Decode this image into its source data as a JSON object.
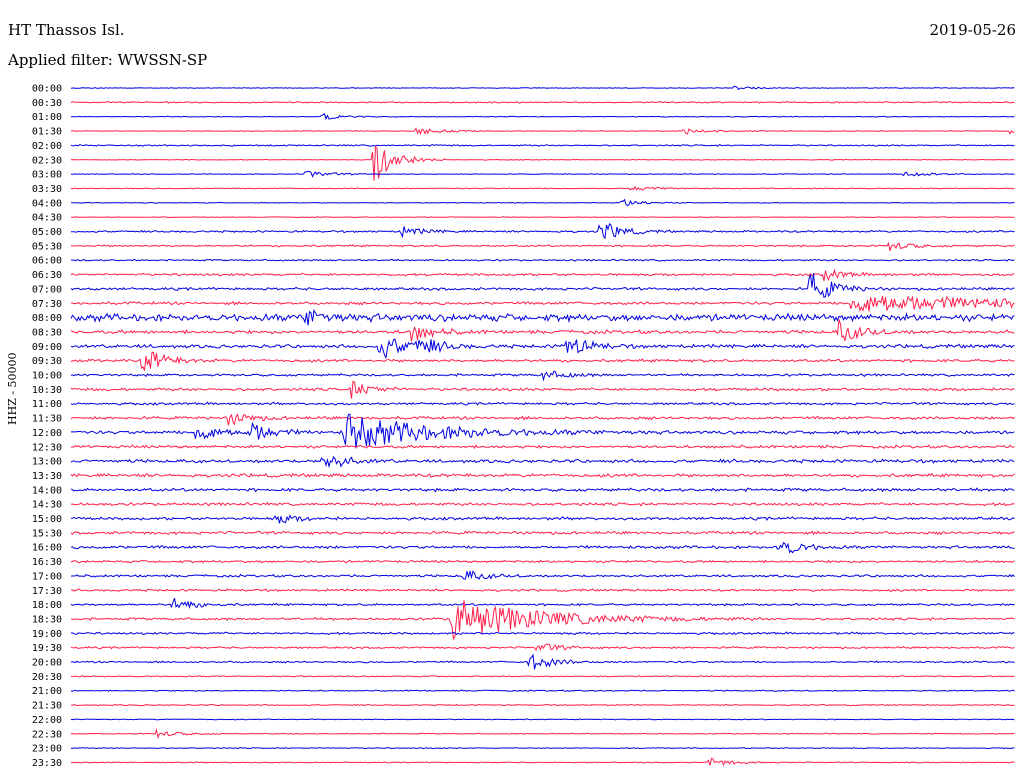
{
  "header": {
    "station": "HT Thassos Isl.",
    "date": "2019-05-26",
    "filter": "Applied filter: WWSSN-SP"
  },
  "chart_data": {
    "type": "line",
    "title": "HT Thassos Isl.",
    "subtitle": "Applied filter: WWSSN-SP",
    "date": "2019-05-26",
    "ylabel": "HHZ - 50000",
    "trace_interval_minutes": 30,
    "colors": [
      "#0000e0",
      "#ff1f4b"
    ],
    "time_labels": [
      "00:00",
      "00:30",
      "01:00",
      "01:30",
      "02:00",
      "02:30",
      "03:00",
      "03:30",
      "04:00",
      "04:30",
      "05:00",
      "05:30",
      "06:00",
      "06:30",
      "07:00",
      "07:30",
      "08:00",
      "08:30",
      "09:00",
      "09:30",
      "10:00",
      "10:30",
      "11:00",
      "11:30",
      "12:00",
      "12:30",
      "13:00",
      "13:30",
      "14:00",
      "14:30",
      "15:00",
      "15:30",
      "16:00",
      "16:30",
      "17:00",
      "17:30",
      "18:00",
      "18:30",
      "19:00",
      "19:30",
      "20:00",
      "20:30",
      "21:00",
      "21:30",
      "22:00",
      "22:30",
      "23:00",
      "23:30"
    ],
    "noise": [
      0.3,
      0.6,
      0.3,
      0.3,
      0.6,
      0.3,
      0.3,
      0.4,
      0.3,
      0.3,
      0.8,
      0.8,
      0.7,
      1.0,
      1.1,
      1.2,
      3.0,
      1.5,
      1.5,
      1.2,
      1.0,
      1.2,
      1.0,
      1.2,
      1.4,
      1.2,
      1.4,
      1.4,
      1.3,
      1.2,
      1.2,
      1.2,
      1.2,
      1.0,
      1.0,
      0.9,
      0.9,
      1.0,
      0.9,
      0.8,
      0.7,
      0.5,
      0.5,
      0.5,
      0.4,
      0.4,
      0.4,
      0.4
    ],
    "events": [
      {
        "trace": 0,
        "minute": 21,
        "amplitude": 2
      },
      {
        "trace": 2,
        "minute": 8,
        "amplitude": 3
      },
      {
        "trace": 3,
        "minute": 11,
        "amplitude": 5
      },
      {
        "trace": 3,
        "minute": 19.5,
        "amplitude": 4
      },
      {
        "trace": 3,
        "minute": 29.9,
        "amplitude": 6
      },
      {
        "trace": 5,
        "minute": 9.6,
        "amplitude": 26
      },
      {
        "trace": 6,
        "minute": 7.5,
        "amplitude": 4
      },
      {
        "trace": 6,
        "minute": 26.5,
        "amplitude": 4
      },
      {
        "trace": 7,
        "minute": 17.8,
        "amplitude": 3
      },
      {
        "trace": 8,
        "minute": 17.5,
        "amplitude": 4
      },
      {
        "trace": 10,
        "minute": 10.5,
        "amplitude": 5
      },
      {
        "trace": 10,
        "minute": 16.8,
        "amplitude": 12
      },
      {
        "trace": 11,
        "minute": 26,
        "amplitude": 5
      },
      {
        "trace": 13,
        "minute": 23.9,
        "amplitude": 6
      },
      {
        "trace": 14,
        "minute": 23.5,
        "amplitude": 18
      },
      {
        "trace": 15,
        "minute": 24.8,
        "amplitude": 9,
        "duration": 5
      },
      {
        "trace": 16,
        "minute": 7.5,
        "amplitude": 8
      },
      {
        "trace": 17,
        "minute": 10.8,
        "amplitude": 10
      },
      {
        "trace": 17,
        "minute": 24.4,
        "amplitude": 12
      },
      {
        "trace": 18,
        "minute": 9.8,
        "amplitude": 14
      },
      {
        "trace": 18,
        "minute": 11,
        "amplitude": 10
      },
      {
        "trace": 18,
        "minute": 15.7,
        "amplitude": 12
      },
      {
        "trace": 19,
        "minute": 2.3,
        "amplitude": 14
      },
      {
        "trace": 20,
        "minute": 15,
        "amplitude": 5
      },
      {
        "trace": 21,
        "minute": 8.9,
        "amplitude": 8
      },
      {
        "trace": 23,
        "minute": 5,
        "amplitude": 7
      },
      {
        "trace": 24,
        "minute": 4,
        "amplitude": 10
      },
      {
        "trace": 24,
        "minute": 8.7,
        "amplitude": 18,
        "duration": 2.5
      },
      {
        "trace": 24,
        "minute": 5.7,
        "amplitude": 10
      },
      {
        "trace": 26,
        "minute": 8,
        "amplitude": 10
      },
      {
        "trace": 30,
        "minute": 6.5,
        "amplitude": 5
      },
      {
        "trace": 32,
        "minute": 22.5,
        "amplitude": 10
      },
      {
        "trace": 34,
        "minute": 12.5,
        "amplitude": 6
      },
      {
        "trace": 36,
        "minute": 3.2,
        "amplitude": 7
      },
      {
        "trace": 37,
        "minute": 12.1,
        "amplitude": 22,
        "duration": 2.5
      },
      {
        "trace": 39,
        "minute": 14.8,
        "amplitude": 5
      },
      {
        "trace": 40,
        "minute": 14.6,
        "amplitude": 9
      },
      {
        "trace": 45,
        "minute": 2.7,
        "amplitude": 4
      },
      {
        "trace": 47,
        "minute": 20.3,
        "amplitude": 5
      }
    ]
  }
}
